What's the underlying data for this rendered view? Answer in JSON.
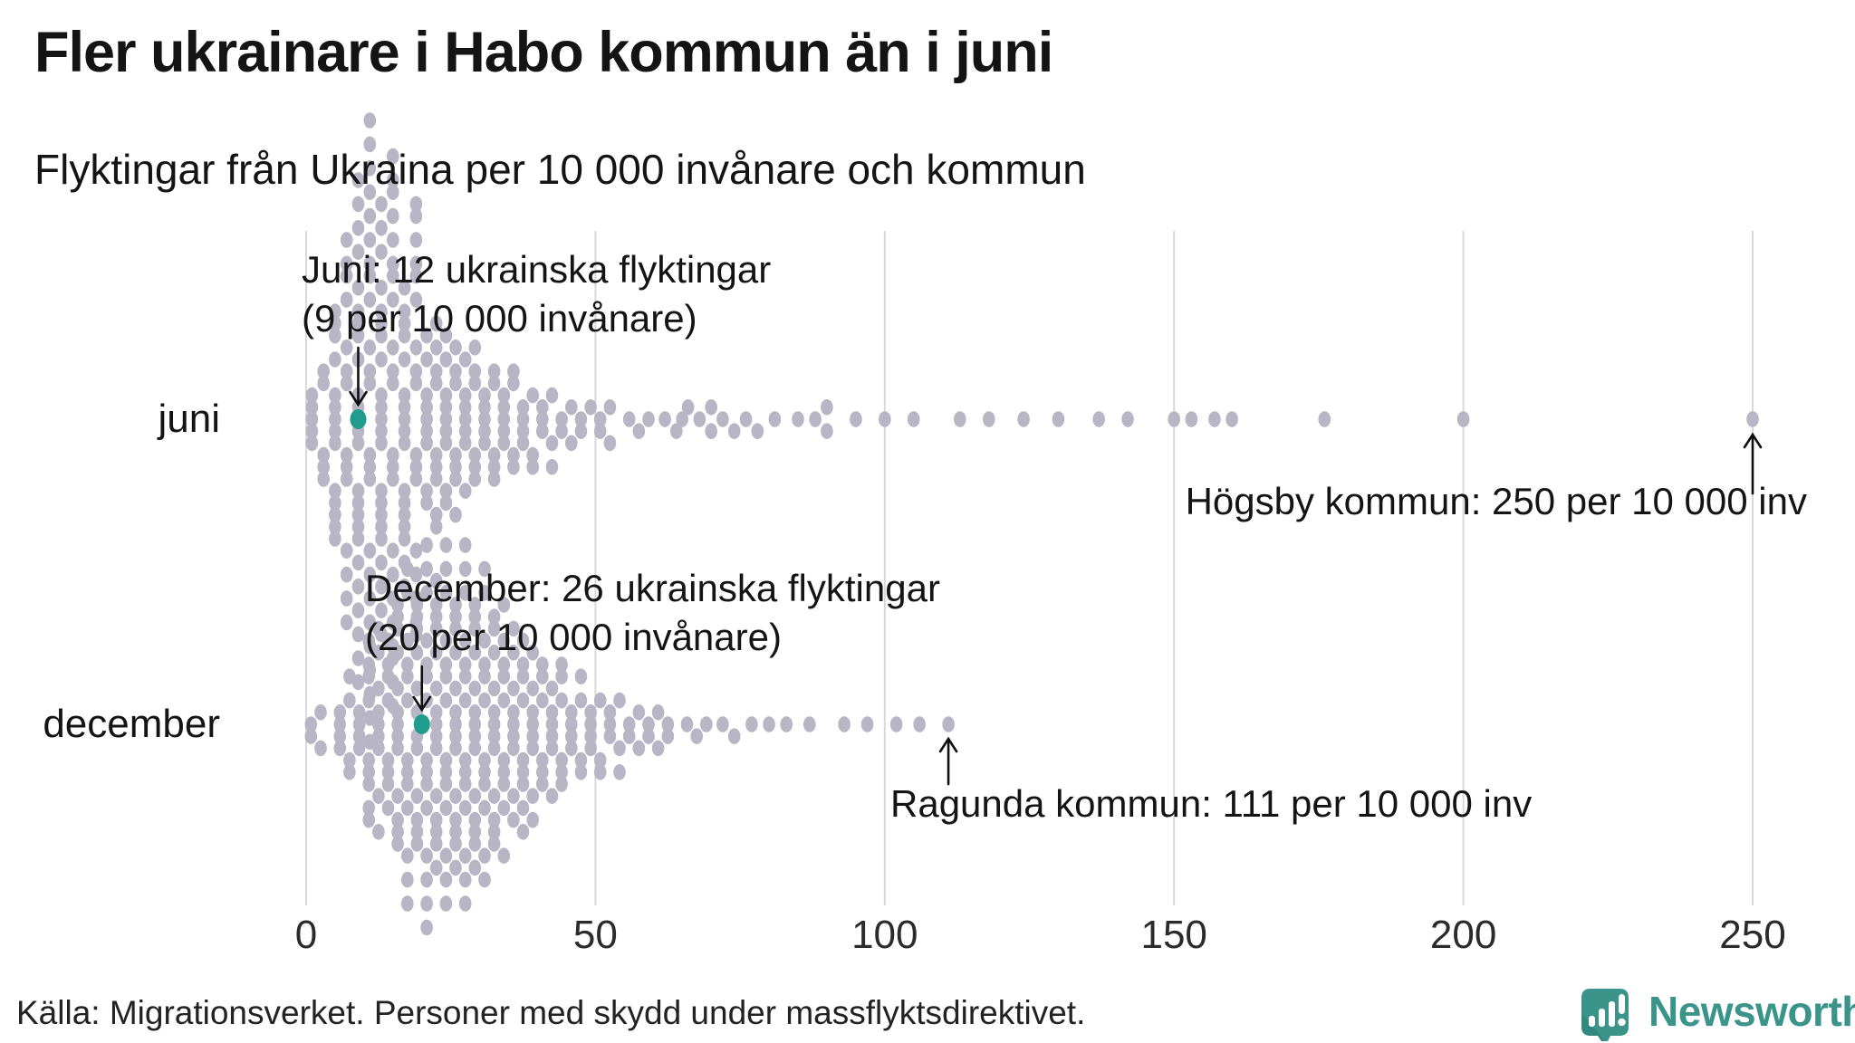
{
  "title": "Fler ukrainare i Habo kommun än i juni",
  "subtitle": "Flyktingar från Ukraina per 10 000 invånare och kommun",
  "source": "Källa: Migrationsverket. Personer med skydd under massflyktsdirektivet.",
  "logo": {
    "brand": "Newsworthy",
    "icon": "bar-chart-speech-bubble-icon",
    "teal": "#3a948a",
    "teal_dark": "#2e7e76"
  },
  "colors": {
    "dot": "#b8b5c5",
    "highlight": "#1f9c8c",
    "gridline": "#d9d9d9",
    "text": "#141414",
    "arrow": "#111111"
  },
  "chart_data": {
    "type": "scatter",
    "variant": "beeswarm",
    "title": "Fler ukrainare i Habo kommun än i juni",
    "subtitle": "Flyktingar från Ukraina per 10 000 invånare och kommun",
    "xlabel": "Flyktingar från Ukraina per 10 000 invånare",
    "x_ticks": [
      0,
      50,
      100,
      150,
      200,
      250
    ],
    "xlim": [
      0,
      260
    ],
    "grid": "vertical",
    "rows": [
      {
        "label": "juni",
        "highlight": {
          "municipality": "Habo",
          "value": 9,
          "annotation_line1": "Juni: 12 ukrainska flyktingar",
          "annotation_line2": "(9 per 10 000 invånare)"
        },
        "max_point": {
          "municipality": "Högsby",
          "value": 250,
          "annotation": "Högsby kommun: 250 per 10 000 inv"
        },
        "distribution_bins": [
          [
            0,
            4,
            10
          ],
          [
            4,
            8,
            28
          ],
          [
            8,
            12,
            48
          ],
          [
            12,
            16,
            44
          ],
          [
            16,
            20,
            34
          ],
          [
            20,
            25,
            27
          ],
          [
            25,
            30,
            20
          ],
          [
            30,
            35,
            15
          ],
          [
            35,
            40,
            11
          ],
          [
            40,
            45,
            8
          ],
          [
            45,
            50,
            5
          ],
          [
            50,
            55,
            4
          ],
          [
            55,
            60,
            3
          ]
        ],
        "outlier_values": [
          62,
          64,
          65,
          66,
          68,
          70,
          70,
          72,
          74,
          76,
          78,
          81,
          85,
          88,
          90,
          90,
          95,
          100,
          105,
          113,
          118,
          124,
          130,
          137,
          142,
          150,
          153,
          157,
          160,
          176,
          200,
          250
        ]
      },
      {
        "label": "december",
        "highlight": {
          "municipality": "Habo",
          "value": 20,
          "annotation_line1": "December: 26 ukrainska flyktingar",
          "annotation_line2": "(20 per 10 000 invånare)"
        },
        "max_point": {
          "municipality": "Ragunda",
          "value": 111,
          "annotation": "Ragunda kommun: 111 per 10 000 inv"
        },
        "distribution_bins": [
          [
            0,
            5,
            4
          ],
          [
            5,
            10,
            12
          ],
          [
            10,
            15,
            26
          ],
          [
            15,
            20,
            38
          ],
          [
            20,
            25,
            44
          ],
          [
            25,
            30,
            42
          ],
          [
            30,
            35,
            34
          ],
          [
            35,
            40,
            26
          ],
          [
            40,
            45,
            18
          ],
          [
            45,
            50,
            12
          ],
          [
            50,
            55,
            9
          ],
          [
            55,
            60,
            6
          ],
          [
            60,
            65,
            4
          ],
          [
            65,
            70,
            3
          ]
        ],
        "outlier_values": [
          72,
          74,
          77,
          80,
          83,
          87,
          93,
          97,
          102,
          106,
          111
        ]
      }
    ]
  }
}
